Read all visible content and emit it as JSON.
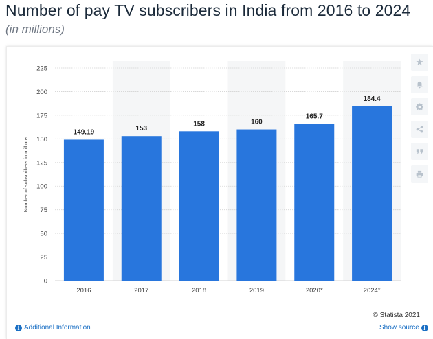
{
  "header": {
    "title": "Number of pay TV subscribers in India from 2016 to 2024",
    "subtitle": "(in millions)"
  },
  "toolbar": {
    "icons": [
      "star-icon",
      "bell-icon",
      "gear-icon",
      "share-icon",
      "quote-icon",
      "print-icon"
    ]
  },
  "footer": {
    "copyright": "© Statista 2021",
    "additional_info": "Additional Information",
    "show_source": "Show source",
    "info_glyph": "i"
  },
  "colors": {
    "bar": "#2876dd",
    "band": "#f5f6f7",
    "grid": "#d3d3d3",
    "accent_link": "#1a6fc4"
  },
  "chart_data": {
    "type": "bar",
    "categories": [
      "2016",
      "2017",
      "2018",
      "2019",
      "2020*",
      "2024*"
    ],
    "values": [
      149.19,
      153,
      158,
      160,
      165.7,
      184.4
    ],
    "value_labels": [
      "149.19",
      "153",
      "158",
      "160",
      "165.7",
      "184.4"
    ],
    "title": "Number of pay TV subscribers in India from 2016 to 2024",
    "subtitle": "(in millions)",
    "xlabel": "",
    "ylabel": "Number of subscribers in millions",
    "ylim": [
      0,
      225
    ],
    "yticks": [
      0,
      25,
      50,
      75,
      100,
      125,
      150,
      175,
      200,
      225
    ],
    "grid": true,
    "legend": "none"
  }
}
